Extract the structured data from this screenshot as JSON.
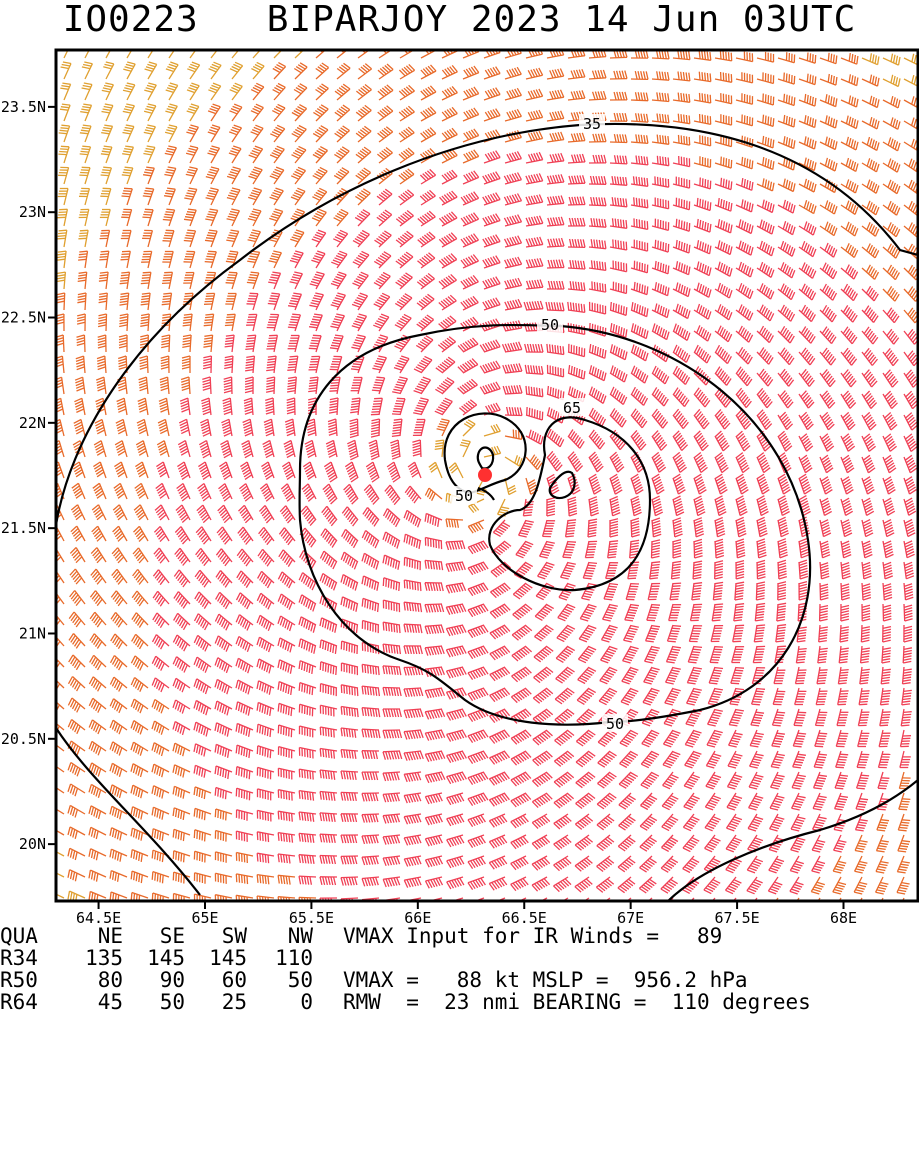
{
  "header": {
    "storm_id": "IO0223",
    "storm_name": "BIPARJOY",
    "date": "2023 14 Jun 03UTC"
  },
  "axes": {
    "x_ticks": [
      "64.5E",
      "65E",
      "65.5E",
      "66E",
      "66.5E",
      "67E",
      "67.5E",
      "68E"
    ],
    "x_values": [
      64.5,
      65,
      65.5,
      66,
      66.5,
      67,
      67.5,
      68
    ],
    "y_ticks": [
      "23.5N",
      "23N",
      "22.5N",
      "22N",
      "21.5N",
      "21N",
      "20.5N",
      "20N"
    ],
    "y_values": [
      23.5,
      23,
      22.5,
      22,
      21.5,
      21,
      20.5,
      20
    ],
    "lon_range": [
      64.3,
      68.35
    ],
    "lat_range": [
      19.73,
      23.77
    ]
  },
  "storm": {
    "center_lon": 66.3,
    "center_lat": 21.75,
    "center_color": "#ff3030"
  },
  "contour_labels": [
    "35",
    "50",
    "65",
    "50",
    "50"
  ],
  "colors": {
    "weak": "#22cc22",
    "moderate": "#e0a030",
    "strong": "#e86a2a",
    "intense": "#f04055",
    "contour": "#000000"
  },
  "table": {
    "header": [
      "QUA",
      "NE",
      "SE",
      "SW",
      "NW"
    ],
    "rows": [
      [
        "R34",
        "135",
        "145",
        "145",
        "110"
      ],
      [
        "R50",
        "80",
        "90",
        "60",
        "50"
      ],
      [
        "R64",
        "45",
        "50",
        "25",
        "0"
      ]
    ]
  },
  "stats": {
    "line1": "VMAX Input for IR Winds =   89",
    "line2": "VMAX =   88 kt MSLP =  956.2 hPa",
    "line3": "RMW  =  23 nmi BEARING =  110 degrees"
  }
}
